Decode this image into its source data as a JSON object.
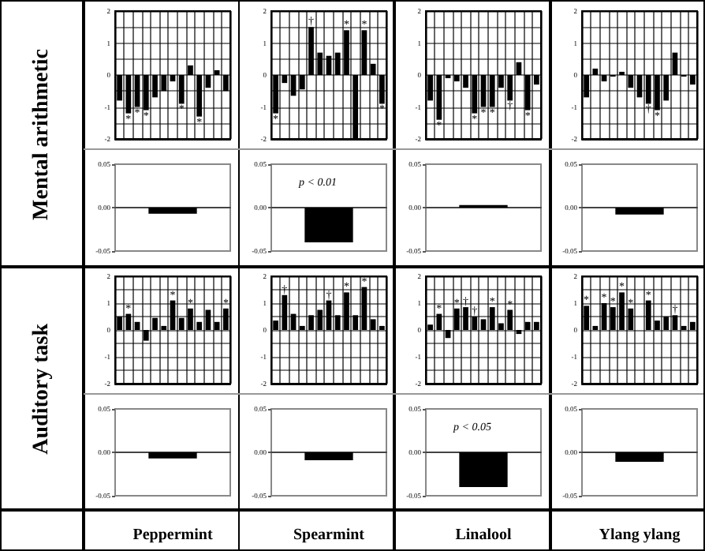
{
  "chart_data": [
    {
      "type": "bar",
      "ylabel": "Mental arithmetic",
      "categories": [
        null,
        null,
        null,
        null,
        null,
        null,
        null,
        null,
        null,
        null,
        null,
        null,
        null
      ],
      "values": [
        -0.8,
        -1.2,
        -1.0,
        -1.1,
        -0.7,
        -0.5,
        -0.2,
        -0.9,
        0.3,
        -1.3,
        -0.4,
        0.15,
        -0.5
      ],
      "value_labels": [
        null,
        "*",
        "*",
        "*",
        null,
        null,
        null,
        "*",
        null,
        "*",
        null,
        null,
        null
      ],
      "color": "#000000",
      "ylim": [
        -2,
        2
      ],
      "yticks": [
        -2,
        {
          "value": -1.5,
          "label": null
        },
        -1,
        {
          "value": -0.5,
          "label": null
        },
        0,
        {
          "value": 0.5,
          "label": null
        },
        1,
        {
          "value": 1.5,
          "label": null
        },
        2
      ],
      "grid": true,
      "tick_labels": "y"
    },
    {
      "type": "bar",
      "categories": [
        null,
        null,
        null,
        null,
        null,
        null,
        null,
        null,
        null,
        null,
        null,
        null,
        null
      ],
      "values": [
        -1.2,
        -0.25,
        -0.65,
        -0.45,
        1.5,
        0.7,
        0.6,
        0.7,
        1.4,
        -2.0,
        1.4,
        0.35,
        -0.9
      ],
      "value_labels": [
        "*",
        null,
        null,
        null,
        "†",
        null,
        null,
        null,
        "*",
        null,
        "*",
        null,
        "*"
      ],
      "color": "#000000",
      "ylim": [
        -2,
        2
      ],
      "yticks": [
        -2,
        {
          "value": -1.5,
          "label": null
        },
        -1,
        {
          "value": -0.5,
          "label": null
        },
        0,
        {
          "value": 0.5,
          "label": null
        },
        1,
        {
          "value": 1.5,
          "label": null
        },
        2
      ],
      "grid": true,
      "tick_labels": "y"
    },
    {
      "type": "bar",
      "categories": [
        null,
        null,
        null,
        null,
        null,
        null,
        null,
        null,
        null,
        null,
        null,
        null,
        null
      ],
      "values": [
        -0.8,
        -1.4,
        -0.1,
        -0.2,
        -0.4,
        -1.2,
        -1.0,
        -1.0,
        -0.4,
        -0.8,
        0.4,
        -1.1,
        -0.3
      ],
      "value_labels": [
        null,
        "*",
        null,
        null,
        null,
        "*",
        "*",
        "*",
        null,
        "†",
        null,
        "*",
        null
      ],
      "color": "#000000",
      "ylim": [
        -2,
        2
      ],
      "yticks": [
        -2,
        {
          "value": -1.5,
          "label": null
        },
        -1,
        {
          "value": -0.5,
          "label": null
        },
        0,
        {
          "value": 0.5,
          "label": null
        },
        1,
        {
          "value": 1.5,
          "label": null
        },
        2
      ],
      "grid": true,
      "tick_labels": "y"
    },
    {
      "type": "bar",
      "categories": [
        null,
        null,
        null,
        null,
        null,
        null,
        null,
        null,
        null,
        null,
        null,
        null,
        null
      ],
      "values": [
        -0.7,
        0.2,
        -0.2,
        -0.05,
        0.1,
        -0.4,
        -0.7,
        -0.9,
        -1.1,
        -0.8,
        0.7,
        -0.05,
        -0.3
      ],
      "value_labels": [
        null,
        null,
        null,
        null,
        null,
        null,
        null,
        "†",
        "*",
        null,
        null,
        null,
        null
      ],
      "color": "#000000",
      "ylim": [
        -2,
        2
      ],
      "yticks": [
        -2,
        {
          "value": -1.5,
          "label": null
        },
        -1,
        {
          "value": -0.5,
          "label": null
        },
        0,
        {
          "value": 0.5,
          "label": null
        },
        1,
        {
          "value": 1.5,
          "label": null
        },
        2
      ],
      "grid": true,
      "tick_labels": "y"
    },
    {
      "type": "bar",
      "categories": [
        null
      ],
      "values": [
        -0.007
      ],
      "color": "#000000",
      "ylim": [
        -0.05,
        0.05
      ],
      "yticks": [
        {
          "value": -0.05,
          "label": "-0.05"
        },
        {
          "value": 0,
          "label": "0.00"
        },
        {
          "value": 0.05,
          "label": "0.05"
        }
      ],
      "tick_labels": "y"
    },
    {
      "type": "bar",
      "categories": [
        null
      ],
      "values": [
        -0.04
      ],
      "color": "#000000",
      "ylim": [
        -0.05,
        0.05
      ],
      "yticks": [
        {
          "value": -0.05,
          "label": "-0.05"
        },
        {
          "value": 0,
          "label": "0.00"
        },
        {
          "value": 0.05,
          "label": "0.05"
        }
      ],
      "tick_labels": "y",
      "annotations": [
        "p < 0.01"
      ]
    },
    {
      "type": "bar",
      "categories": [
        null
      ],
      "values": [
        0.003
      ],
      "color": "#000000",
      "ylim": [
        -0.05,
        0.05
      ],
      "yticks": [
        {
          "value": -0.05,
          "label": "-0.05"
        },
        {
          "value": 0,
          "label": "0.00"
        },
        {
          "value": 0.05,
          "label": "0.05"
        }
      ],
      "tick_labels": "y"
    },
    {
      "type": "bar",
      "categories": [
        null
      ],
      "values": [
        -0.008
      ],
      "color": "#000000",
      "ylim": [
        -0.05,
        0.05
      ],
      "yticks": [
        {
          "value": -0.05,
          "label": "-0.05"
        },
        {
          "value": 0,
          "label": "0.00"
        },
        {
          "value": 0.05,
          "label": "0.05"
        }
      ],
      "tick_labels": "y"
    },
    {
      "type": "bar",
      "ylabel": "Auditory task",
      "categories": [
        null,
        null,
        null,
        null,
        null,
        null,
        null,
        null,
        null,
        null,
        null,
        null,
        null
      ],
      "values": [
        0.5,
        0.6,
        0.3,
        -0.4,
        0.45,
        0.15,
        1.1,
        0.45,
        0.8,
        0.3,
        0.75,
        0.3,
        0.8
      ],
      "value_labels": [
        null,
        "*",
        null,
        null,
        null,
        null,
        "*",
        null,
        "*",
        null,
        null,
        null,
        "*"
      ],
      "color": "#000000",
      "ylim": [
        -2,
        2
      ],
      "yticks": [
        -2,
        {
          "value": -1.5,
          "label": null
        },
        -1,
        {
          "value": -0.5,
          "label": null
        },
        0,
        {
          "value": 0.5,
          "label": null
        },
        1,
        {
          "value": 1.5,
          "label": null
        },
        2
      ],
      "grid": true,
      "tick_labels": "y"
    },
    {
      "type": "bar",
      "categories": [
        null,
        null,
        null,
        null,
        null,
        null,
        null,
        null,
        null,
        null,
        null,
        null,
        null
      ],
      "values": [
        0.35,
        1.3,
        0.6,
        0.15,
        0.55,
        0.75,
        1.1,
        0.55,
        1.4,
        0.55,
        1.6,
        0.4,
        0.15
      ],
      "value_labels": [
        null,
        "†",
        null,
        null,
        null,
        null,
        "†",
        null,
        "*",
        null,
        "*",
        null,
        null
      ],
      "color": "#000000",
      "ylim": [
        -2,
        2
      ],
      "yticks": [
        -2,
        {
          "value": -1.5,
          "label": null
        },
        -1,
        {
          "value": -0.5,
          "label": null
        },
        0,
        {
          "value": 0.5,
          "label": null
        },
        1,
        {
          "value": 1.5,
          "label": null
        },
        2
      ],
      "grid": true,
      "tick_labels": "y"
    },
    {
      "type": "bar",
      "categories": [
        null,
        null,
        null,
        null,
        null,
        null,
        null,
        null,
        null,
        null,
        null,
        null,
        null
      ],
      "values": [
        0.2,
        0.6,
        -0.3,
        0.8,
        0.85,
        0.5,
        0.4,
        0.85,
        0.25,
        0.75,
        -0.15,
        0.3,
        0.3
      ],
      "value_labels": [
        null,
        "*",
        null,
        "*",
        "†",
        "†",
        null,
        "*",
        null,
        "*",
        null,
        null,
        null
      ],
      "color": "#000000",
      "ylim": [
        -2,
        2
      ],
      "yticks": [
        -2,
        {
          "value": -1.5,
          "label": null
        },
        -1,
        {
          "value": -0.5,
          "label": null
        },
        0,
        {
          "value": 0.5,
          "label": null
        },
        1,
        {
          "value": 1.5,
          "label": null
        },
        2
      ],
      "grid": true,
      "tick_labels": "y"
    },
    {
      "type": "bar",
      "categories": [
        null,
        null,
        null,
        null,
        null,
        null,
        null,
        null,
        null,
        null,
        null,
        null,
        null
      ],
      "values": [
        0.9,
        0.15,
        1.0,
        0.85,
        1.4,
        0.8,
        0,
        1.1,
        0.35,
        0.5,
        0.55,
        0.15,
        0.3
      ],
      "value_labels": [
        "*",
        null,
        "*",
        "*",
        "*",
        "*",
        null,
        "*",
        null,
        null,
        "†",
        null,
        null
      ],
      "color": "#000000",
      "ylim": [
        -2,
        2
      ],
      "yticks": [
        -2,
        {
          "value": -1.5,
          "label": null
        },
        -1,
        {
          "value": -0.5,
          "label": null
        },
        0,
        {
          "value": 0.5,
          "label": null
        },
        1,
        {
          "value": 1.5,
          "label": null
        },
        2
      ],
      "grid": true,
      "tick_labels": "y"
    },
    {
      "type": "bar",
      "xlabel": "Peppermint",
      "categories": [
        null
      ],
      "values": [
        -0.007
      ],
      "color": "#000000",
      "ylim": [
        -0.05,
        0.05
      ],
      "yticks": [
        {
          "value": -0.05,
          "label": "-0.05"
        },
        {
          "value": 0,
          "label": "0.00"
        },
        {
          "value": 0.05,
          "label": "0.05"
        }
      ],
      "tick_labels": "y"
    },
    {
      "type": "bar",
      "xlabel": "Spearmint",
      "categories": [
        null
      ],
      "values": [
        -0.009
      ],
      "color": "#000000",
      "ylim": [
        -0.05,
        0.05
      ],
      "yticks": [
        {
          "value": -0.05,
          "label": "-0.05"
        },
        {
          "value": 0,
          "label": "0.00"
        },
        {
          "value": 0.05,
          "label": "0.05"
        }
      ],
      "tick_labels": "y"
    },
    {
      "type": "bar",
      "xlabel": "Linalool",
      "categories": [
        null
      ],
      "values": [
        -0.04
      ],
      "color": "#000000",
      "ylim": [
        -0.05,
        0.05
      ],
      "yticks": [
        {
          "value": -0.05,
          "label": "-0.05"
        },
        {
          "value": 0,
          "label": "0.00"
        },
        {
          "value": 0.05,
          "label": "0.05"
        }
      ],
      "tick_labels": "y",
      "annotations": [
        "p < 0.05"
      ]
    },
    {
      "type": "bar",
      "xlabel": "Ylang ylang",
      "categories": [
        null
      ],
      "values": [
        -0.011
      ],
      "color": "#000000",
      "ylim": [
        -0.05,
        0.05
      ],
      "yticks": [
        {
          "value": -0.05,
          "label": "-0.05"
        },
        {
          "value": 0,
          "label": "0.00"
        },
        {
          "value": 0.05,
          "label": "0.05"
        }
      ],
      "tick_labels": "y"
    }
  ]
}
